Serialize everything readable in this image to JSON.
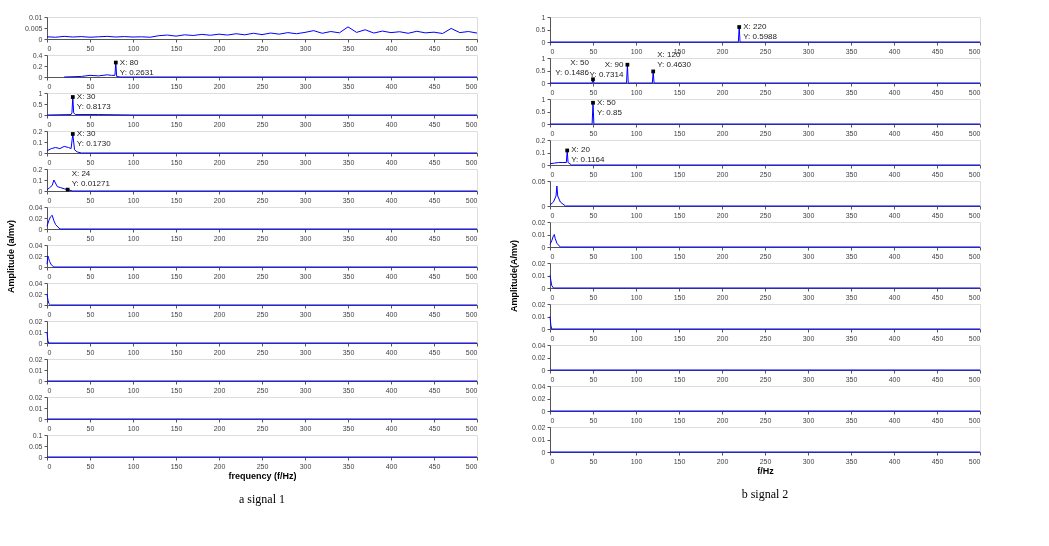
{
  "chart_data": [
    {
      "type": "line",
      "xlim": [
        0,
        500
      ],
      "xticks": [
        0,
        50,
        100,
        150,
        200,
        250,
        300,
        350,
        400,
        450,
        500
      ],
      "ylim": [
        0,
        0.01
      ],
      "yticks": [
        0,
        0.005,
        0.01
      ],
      "marker": "none",
      "series": [
        {
          "color": "#0000ff",
          "x": [
            0,
            10,
            20,
            30,
            40,
            50,
            60,
            70,
            80,
            90,
            100,
            110,
            120,
            130,
            140,
            150,
            160,
            170,
            180,
            190,
            200,
            210,
            220,
            230,
            240,
            250,
            260,
            270,
            280,
            290,
            300,
            310,
            320,
            330,
            340,
            350,
            360,
            370,
            380,
            390,
            400,
            410,
            420,
            430,
            440,
            450,
            460,
            470,
            480,
            490,
            500
          ],
          "values": [
            0.001,
            0.0008,
            0.0012,
            0.0009,
            0.0011,
            0.0008,
            0.001,
            0.0012,
            0.0009,
            0.0011,
            0.0009,
            0.001,
            0.0008,
            0.0015,
            0.0018,
            0.0013,
            0.0019,
            0.0016,
            0.0021,
            0.0017,
            0.0022,
            0.0018,
            0.0024,
            0.0019,
            0.0026,
            0.002,
            0.0027,
            0.0022,
            0.0029,
            0.0024,
            0.003,
            0.0038,
            0.0026,
            0.0034,
            0.0028,
            0.0055,
            0.003,
            0.0042,
            0.0027,
            0.0036,
            0.0029,
            0.0033,
            0.0026,
            0.0035,
            0.0028,
            0.0031,
            0.0025,
            0.0048,
            0.0029,
            0.0034,
            0.0027
          ]
        }
      ]
    },
    {
      "type": "line",
      "xlim": [
        0,
        500
      ],
      "xticks": [
        0,
        50,
        100,
        150,
        200,
        250,
        300,
        350,
        400,
        450,
        500
      ],
      "ylim": [
        0,
        0.4
      ],
      "yticks": [
        0,
        0.2,
        0.4
      ],
      "marker": "none",
      "series": [
        {
          "color": "#0000ff",
          "x": [
            20,
            40,
            50,
            60,
            70,
            75,
            79,
            80,
            81,
            85,
            100,
            500
          ],
          "values": [
            0,
            0.01,
            0.03,
            0.02,
            0.04,
            0.03,
            0.03,
            0.2631,
            0.01,
            0,
            0,
            0
          ]
        }
      ],
      "annotations": [
        {
          "text": "X: 80\nY: 0.2631",
          "x": 80,
          "y": 0.2631
        }
      ]
    },
    {
      "type": "line",
      "xlim": [
        0,
        500
      ],
      "xticks": [
        0,
        50,
        100,
        150,
        200,
        250,
        300,
        350,
        400,
        450,
        500
      ],
      "ylim": [
        0,
        1
      ],
      "yticks": [
        0,
        0.5,
        1
      ],
      "marker": "none",
      "series": [
        {
          "color": "#0000ff",
          "x": [
            0,
            28,
            29,
            30,
            31,
            33,
            60,
            100,
            500
          ],
          "values": [
            0,
            0.02,
            0.1,
            0.8173,
            0.1,
            0.02,
            0.02,
            0,
            0
          ]
        }
      ],
      "annotations": [
        {
          "text": "X: 30\nY: 0.8173",
          "x": 30,
          "y": 0.8173
        }
      ]
    },
    {
      "type": "line",
      "xlim": [
        0,
        500
      ],
      "xticks": [
        0,
        50,
        100,
        150,
        200,
        250,
        300,
        350,
        400,
        450,
        500
      ],
      "ylim": [
        0,
        0.2
      ],
      "yticks": [
        0,
        0.1,
        0.2
      ],
      "marker": "none",
      "series": [
        {
          "color": "#0000ff",
          "x": [
            0,
            5,
            10,
            15,
            20,
            25,
            28,
            30,
            32,
            35,
            40,
            500
          ],
          "values": [
            0.02,
            0.04,
            0.05,
            0.04,
            0.06,
            0.05,
            0.04,
            0.173,
            0.03,
            0.01,
            0,
            0
          ]
        }
      ],
      "annotations": [
        {
          "text": "X: 30\nY: 0.1730",
          "x": 30,
          "y": 0.173
        }
      ]
    },
    {
      "type": "line",
      "xlim": [
        0,
        500
      ],
      "xticks": [
        0,
        50,
        100,
        150,
        200,
        250,
        300,
        350,
        400,
        450,
        500
      ],
      "ylim": [
        0,
        0.2
      ],
      "yticks": [
        0,
        0.1,
        0.2
      ],
      "marker": "none",
      "series": [
        {
          "color": "#0000ff",
          "x": [
            0,
            3,
            6,
            8,
            12,
            16,
            20,
            24,
            30,
            500
          ],
          "values": [
            0.01,
            0.03,
            0.05,
            0.1,
            0.04,
            0.03,
            0.02,
            0.01271,
            0,
            0
          ]
        }
      ],
      "annotations": [
        {
          "text": "X: 24\nY: 0.01271",
          "x": 24,
          "y": 0.01271
        }
      ]
    },
    {
      "type": "line",
      "xlim": [
        0,
        500
      ],
      "xticks": [
        0,
        50,
        100,
        150,
        200,
        250,
        300,
        350,
        400,
        450,
        500
      ],
      "ylim": [
        0,
        0.04
      ],
      "yticks": [
        0,
        0.02,
        0.04
      ],
      "marker": "none",
      "series": [
        {
          "color": "#0000ff",
          "x": [
            0,
            2,
            4,
            6,
            8,
            10,
            15,
            500
          ],
          "values": [
            0.005,
            0.015,
            0.022,
            0.025,
            0.015,
            0.008,
            0,
            0
          ]
        }
      ]
    },
    {
      "type": "line",
      "xlim": [
        0,
        500
      ],
      "xticks": [
        0,
        50,
        100,
        150,
        200,
        250,
        300,
        350,
        400,
        450,
        500
      ],
      "ylim": [
        0,
        0.04
      ],
      "yticks": [
        0,
        0.02,
        0.04
      ],
      "marker": "none",
      "ylabel": "Amplitude (a/mv)",
      "series": [
        {
          "color": "#0000ff",
          "x": [
            0,
            1,
            2,
            3,
            5,
            8,
            500
          ],
          "values": [
            0.005,
            0.02,
            0.015,
            0.01,
            0.004,
            0,
            0
          ]
        }
      ]
    },
    {
      "type": "line",
      "xlim": [
        0,
        500
      ],
      "xticks": [
        0,
        50,
        100,
        150,
        200,
        250,
        300,
        350,
        400,
        450,
        500
      ],
      "ylim": [
        0,
        0.04
      ],
      "yticks": [
        0,
        0.02,
        0.04
      ],
      "marker": "none",
      "series": [
        {
          "color": "#0000ff",
          "x": [
            0,
            1,
            2,
            4,
            500
          ],
          "values": [
            0.02,
            0.01,
            0.003,
            0,
            0
          ]
        }
      ]
    },
    {
      "type": "line",
      "xlim": [
        0,
        500
      ],
      "xticks": [
        0,
        50,
        100,
        150,
        200,
        250,
        300,
        350,
        400,
        450,
        500
      ],
      "ylim": [
        0,
        0.02
      ],
      "yticks": [
        0,
        0.01,
        0.02
      ],
      "marker": "none",
      "series": [
        {
          "color": "#0000ff",
          "x": [
            0,
            1,
            2,
            500
          ],
          "values": [
            0.01,
            0.002,
            0,
            0
          ]
        }
      ]
    },
    {
      "type": "line",
      "xlim": [
        0,
        500
      ],
      "xticks": [
        0,
        50,
        100,
        150,
        200,
        250,
        300,
        350,
        400,
        450,
        500
      ],
      "ylim": [
        0,
        0.02
      ],
      "yticks": [
        0,
        0.01,
        0.02
      ],
      "marker": "none",
      "series": [
        {
          "color": "#0000ff",
          "x": [
            0,
            500
          ],
          "values": [
            0,
            0
          ]
        }
      ]
    },
    {
      "type": "line",
      "xlim": [
        0,
        500
      ],
      "xticks": [
        0,
        50,
        100,
        150,
        200,
        250,
        300,
        350,
        400,
        450,
        500
      ],
      "ylim": [
        0,
        0.02
      ],
      "yticks": [
        0,
        0.01,
        0.02
      ],
      "marker": "none",
      "series": [
        {
          "color": "#0000ff",
          "x": [
            0,
            500
          ],
          "values": [
            0,
            0
          ]
        }
      ]
    },
    {
      "type": "line",
      "xlim": [
        0,
        500
      ],
      "xticks": [
        0,
        50,
        100,
        150,
        200,
        250,
        300,
        350,
        400,
        450,
        500
      ],
      "ylim": [
        0,
        0.1
      ],
      "yticks": [
        0,
        0.05,
        0.1
      ],
      "marker": "none",
      "xlabel": "frequency (f/Hz)",
      "series": [
        {
          "color": "#0000ff",
          "x": [
            0,
            500
          ],
          "values": [
            0,
            0
          ]
        }
      ],
      "annotations": [
        "a signal 1"
      ]
    },
    {
      "type": "line",
      "xlim": [
        0,
        500
      ],
      "xticks": [
        0,
        50,
        100,
        150,
        200,
        250,
        300,
        350,
        400,
        450,
        500
      ],
      "ylim": [
        0,
        1
      ],
      "yticks": [
        0,
        0.5,
        1
      ],
      "marker": "none",
      "series": [
        {
          "color": "#0000ff",
          "x": [
            0,
            219,
            220,
            221,
            500
          ],
          "values": [
            0,
            0,
            0.5988,
            0,
            0
          ]
        }
      ],
      "annotations": [
        {
          "text": "X: 220\nY: 0.5988",
          "x": 220,
          "y": 0.5988
        }
      ]
    },
    {
      "type": "line",
      "xlim": [
        0,
        500
      ],
      "xticks": [
        0,
        50,
        100,
        150,
        200,
        250,
        300,
        350,
        400,
        450,
        500
      ],
      "ylim": [
        0,
        1
      ],
      "yticks": [
        0,
        0.5,
        1
      ],
      "marker": "none",
      "series": [
        {
          "color": "#0000ff",
          "x": [
            0,
            49,
            50,
            51,
            89,
            90,
            91,
            119,
            120,
            121,
            500
          ],
          "values": [
            0,
            0,
            0.1486,
            0,
            0,
            0.7314,
            0,
            0,
            0.463,
            0,
            0
          ]
        }
      ],
      "annotations": [
        {
          "text": "X: 50\nY: 0.1486",
          "x": 50,
          "y": 0.1486
        },
        {
          "text": "X: 90\nY: 0.7314",
          "x": 90,
          "y": 0.7314
        },
        {
          "text": "X: 120\nY: 0.4630",
          "x": 120,
          "y": 0.463
        }
      ]
    },
    {
      "type": "line",
      "xlim": [
        0,
        500
      ],
      "xticks": [
        0,
        50,
        100,
        150,
        200,
        250,
        300,
        350,
        400,
        450,
        500
      ],
      "ylim": [
        0,
        1
      ],
      "yticks": [
        0,
        0.5,
        1
      ],
      "marker": "none",
      "series": [
        {
          "color": "#0000ff",
          "x": [
            0,
            49,
            50,
            51,
            500
          ],
          "values": [
            0,
            0,
            0.85,
            0,
            0
          ]
        }
      ],
      "annotations": [
        {
          "text": "X: 50\nY: 0.85",
          "x": 50,
          "y": 0.85
        }
      ]
    },
    {
      "type": "line",
      "xlim": [
        0,
        500
      ],
      "xticks": [
        0,
        50,
        100,
        150,
        200,
        250,
        300,
        350,
        400,
        450,
        500
      ],
      "ylim": [
        0,
        0.2
      ],
      "yticks": [
        0,
        0.1,
        0.2
      ],
      "marker": "none",
      "series": [
        {
          "color": "#0000ff",
          "x": [
            0,
            5,
            10,
            15,
            19,
            20,
            21,
            25,
            500
          ],
          "values": [
            0.01,
            0.015,
            0.02,
            0.02,
            0.02,
            0.1164,
            0.02,
            0,
            0
          ]
        }
      ],
      "annotations": [
        {
          "text": "X: 20\nY: 0.1164",
          "x": 20,
          "y": 0.1164
        }
      ]
    },
    {
      "type": "line",
      "xlim": [
        0,
        500
      ],
      "xticks": [
        0,
        50,
        100,
        150,
        200,
        250,
        300,
        350,
        400,
        450,
        500
      ],
      "ylim": [
        0,
        0.05
      ],
      "yticks": [
        0,
        0.05
      ],
      "marker": "none",
      "series": [
        {
          "color": "#0000ff",
          "x": [
            0,
            4,
            7,
            8,
            9,
            12,
            18,
            500
          ],
          "values": [
            0.002,
            0.008,
            0.02,
            0.04,
            0.02,
            0.008,
            0,
            0
          ]
        }
      ]
    },
    {
      "type": "line",
      "xlim": [
        0,
        500
      ],
      "xticks": [
        0,
        50,
        100,
        150,
        200,
        250,
        300,
        350,
        400,
        450,
        500
      ],
      "ylim": [
        0,
        0.02
      ],
      "yticks": [
        0,
        0.01,
        0.02
      ],
      "marker": "none",
      "series": [
        {
          "color": "#0000ff",
          "x": [
            0,
            2,
            4,
            5,
            6,
            8,
            12,
            500
          ],
          "values": [
            0.002,
            0.005,
            0.009,
            0.01,
            0.007,
            0.003,
            0,
            0
          ]
        }
      ]
    },
    {
      "type": "line",
      "xlim": [
        0,
        500
      ],
      "xticks": [
        0,
        50,
        100,
        150,
        200,
        250,
        300,
        350,
        400,
        450,
        500
      ],
      "ylim": [
        0,
        0.02
      ],
      "yticks": [
        0,
        0.01,
        0.02
      ],
      "marker": "none",
      "ylabel": "Amplitude(A/mv)",
      "series": [
        {
          "color": "#0000ff",
          "x": [
            0,
            1,
            2,
            4,
            500
          ],
          "values": [
            0.01,
            0.006,
            0.002,
            0,
            0
          ]
        }
      ]
    },
    {
      "type": "line",
      "xlim": [
        0,
        500
      ],
      "xticks": [
        0,
        50,
        100,
        150,
        200,
        250,
        300,
        350,
        400,
        450,
        500
      ],
      "ylim": [
        0,
        0.02
      ],
      "yticks": [
        0,
        0.01,
        0.02
      ],
      "marker": "none",
      "series": [
        {
          "color": "#0000ff",
          "x": [
            0,
            1,
            2,
            500
          ],
          "values": [
            0.01,
            0.003,
            0,
            0
          ]
        }
      ]
    },
    {
      "type": "line",
      "xlim": [
        0,
        500
      ],
      "xticks": [
        0,
        50,
        100,
        150,
        200,
        250,
        300,
        350,
        400,
        450,
        500
      ],
      "ylim": [
        0,
        0.04
      ],
      "yticks": [
        0,
        0.02,
        0.04
      ],
      "marker": "none",
      "series": [
        {
          "color": "#0000ff",
          "x": [
            0,
            500
          ],
          "values": [
            0,
            0
          ]
        }
      ]
    },
    {
      "type": "line",
      "xlim": [
        0,
        500
      ],
      "xticks": [
        0,
        50,
        100,
        150,
        200,
        250,
        300,
        350,
        400,
        450,
        500
      ],
      "ylim": [
        0,
        0.04
      ],
      "yticks": [
        0,
        0.02,
        0.04
      ],
      "marker": "none",
      "series": [
        {
          "color": "#0000ff",
          "x": [
            0,
            500
          ],
          "values": [
            0,
            0
          ]
        }
      ]
    },
    {
      "type": "line",
      "xlim": [
        0,
        500
      ],
      "xticks": [
        0,
        50,
        100,
        150,
        200,
        250,
        300,
        350,
        400,
        450,
        500
      ],
      "ylim": [
        0,
        0.02
      ],
      "yticks": [
        0,
        0.01,
        0.02
      ],
      "marker": "none",
      "xlabel": "f/Hz",
      "series": [
        {
          "color": "#0000ff",
          "x": [
            0,
            500
          ],
          "values": [
            0,
            0
          ]
        }
      ],
      "annotations": [
        "b signal 2"
      ]
    }
  ]
}
